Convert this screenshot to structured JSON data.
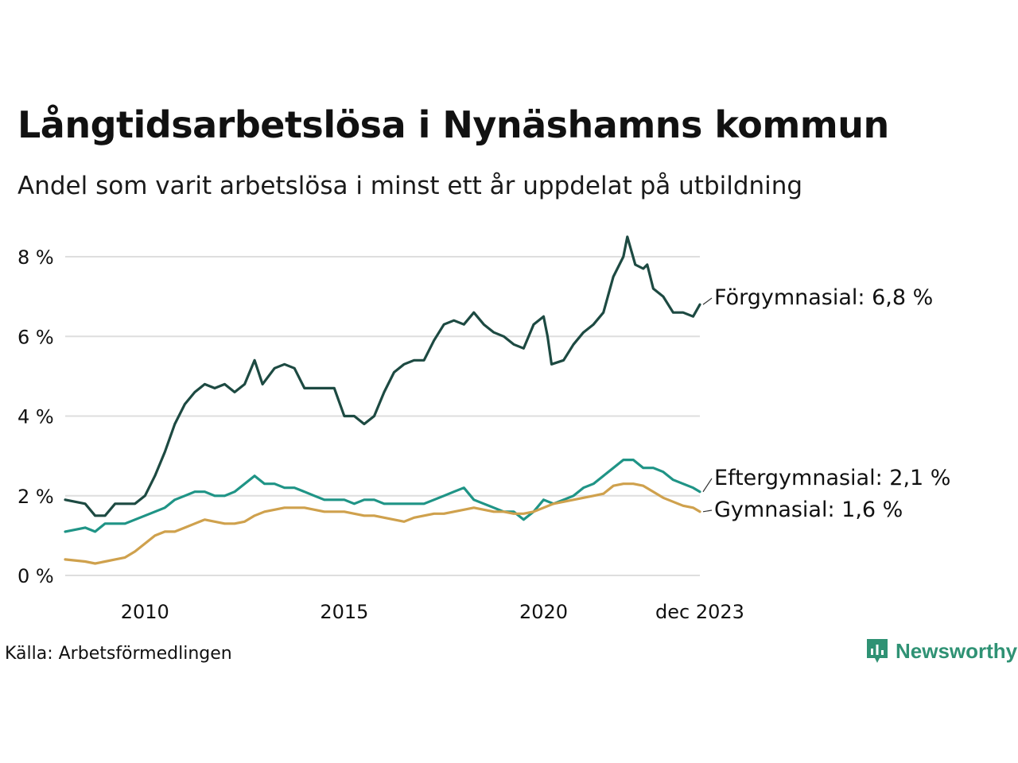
{
  "title": "Långtidsarbetslösa i Nynäshamns kommun",
  "subtitle": "Andel som varit arbetslösa i minst ett år uppdelat på utbildning",
  "source": "Källa: Arbetsförmedlingen",
  "brand": {
    "name": "Newsworthy",
    "icon": "newsworthy-logo-icon",
    "color": "#2f9274"
  },
  "chart_data": {
    "type": "line",
    "title": "Långtidsarbetslösa i Nynäshamns kommun",
    "xlabel": "",
    "ylabel": "",
    "xlim": [
      2008.0,
      2023.92
    ],
    "ylim": [
      0,
      8.5
    ],
    "y_ticks": [
      0,
      2,
      4,
      6,
      8
    ],
    "y_tick_labels": [
      "0 %",
      "2 %",
      "4 %",
      "6 %",
      "8 %"
    ],
    "x_ticks": [
      2010,
      2015,
      2020,
      2023.92
    ],
    "x_tick_labels": [
      "2010",
      "2015",
      "2020",
      "dec 2023"
    ],
    "grid": "horizontal",
    "series": [
      {
        "name": "Förgymnasial",
        "label": "Förgymnasial: 6,8 %",
        "color": "#1d4a42",
        "points": [
          [
            2008.0,
            1.9
          ],
          [
            2008.5,
            1.8
          ],
          [
            2008.75,
            1.5
          ],
          [
            2009.0,
            1.5
          ],
          [
            2009.25,
            1.8
          ],
          [
            2009.5,
            1.8
          ],
          [
            2009.75,
            1.8
          ],
          [
            2010.0,
            2.0
          ],
          [
            2010.25,
            2.5
          ],
          [
            2010.5,
            3.1
          ],
          [
            2010.75,
            3.8
          ],
          [
            2011.0,
            4.3
          ],
          [
            2011.25,
            4.6
          ],
          [
            2011.5,
            4.8
          ],
          [
            2011.75,
            4.7
          ],
          [
            2012.0,
            4.8
          ],
          [
            2012.25,
            4.6
          ],
          [
            2012.5,
            4.8
          ],
          [
            2012.75,
            5.4
          ],
          [
            2012.95,
            4.8
          ],
          [
            2013.25,
            5.2
          ],
          [
            2013.5,
            5.3
          ],
          [
            2013.75,
            5.2
          ],
          [
            2014.0,
            4.7
          ],
          [
            2014.25,
            4.7
          ],
          [
            2014.5,
            4.7
          ],
          [
            2014.75,
            4.7
          ],
          [
            2015.0,
            4.0
          ],
          [
            2015.25,
            4.0
          ],
          [
            2015.5,
            3.8
          ],
          [
            2015.75,
            4.0
          ],
          [
            2016.0,
            4.6
          ],
          [
            2016.25,
            5.1
          ],
          [
            2016.5,
            5.3
          ],
          [
            2016.75,
            5.4
          ],
          [
            2017.0,
            5.4
          ],
          [
            2017.25,
            5.9
          ],
          [
            2017.5,
            6.3
          ],
          [
            2017.75,
            6.4
          ],
          [
            2018.0,
            6.3
          ],
          [
            2018.25,
            6.6
          ],
          [
            2018.5,
            6.3
          ],
          [
            2018.75,
            6.1
          ],
          [
            2019.0,
            6.0
          ],
          [
            2019.25,
            5.8
          ],
          [
            2019.5,
            5.7
          ],
          [
            2019.75,
            6.3
          ],
          [
            2020.0,
            6.5
          ],
          [
            2020.1,
            6.0
          ],
          [
            2020.2,
            5.3
          ],
          [
            2020.5,
            5.4
          ],
          [
            2020.75,
            5.8
          ],
          [
            2021.0,
            6.1
          ],
          [
            2021.25,
            6.3
          ],
          [
            2021.5,
            6.6
          ],
          [
            2021.75,
            7.5
          ],
          [
            2022.0,
            8.0
          ],
          [
            2022.1,
            8.5
          ],
          [
            2022.3,
            7.8
          ],
          [
            2022.5,
            7.7
          ],
          [
            2022.6,
            7.8
          ],
          [
            2022.75,
            7.2
          ],
          [
            2023.0,
            7.0
          ],
          [
            2023.25,
            6.6
          ],
          [
            2023.5,
            6.6
          ],
          [
            2023.75,
            6.5
          ],
          [
            2023.92,
            6.8
          ]
        ]
      },
      {
        "name": "Eftergymnasial",
        "label": "Eftergymnasial: 2,1 %",
        "color": "#1f9486",
        "points": [
          [
            2008.0,
            1.1
          ],
          [
            2008.5,
            1.2
          ],
          [
            2008.75,
            1.1
          ],
          [
            2009.0,
            1.3
          ],
          [
            2009.25,
            1.3
          ],
          [
            2009.5,
            1.3
          ],
          [
            2009.75,
            1.4
          ],
          [
            2010.0,
            1.5
          ],
          [
            2010.25,
            1.6
          ],
          [
            2010.5,
            1.7
          ],
          [
            2010.75,
            1.9
          ],
          [
            2011.0,
            2.0
          ],
          [
            2011.25,
            2.1
          ],
          [
            2011.5,
            2.1
          ],
          [
            2011.75,
            2.0
          ],
          [
            2012.0,
            2.0
          ],
          [
            2012.25,
            2.1
          ],
          [
            2012.5,
            2.3
          ],
          [
            2012.75,
            2.5
          ],
          [
            2013.0,
            2.3
          ],
          [
            2013.25,
            2.3
          ],
          [
            2013.5,
            2.2
          ],
          [
            2013.75,
            2.2
          ],
          [
            2014.0,
            2.1
          ],
          [
            2014.25,
            2.0
          ],
          [
            2014.5,
            1.9
          ],
          [
            2014.75,
            1.9
          ],
          [
            2015.0,
            1.9
          ],
          [
            2015.25,
            1.8
          ],
          [
            2015.5,
            1.9
          ],
          [
            2015.75,
            1.9
          ],
          [
            2016.0,
            1.8
          ],
          [
            2016.25,
            1.8
          ],
          [
            2016.5,
            1.8
          ],
          [
            2016.75,
            1.8
          ],
          [
            2017.0,
            1.8
          ],
          [
            2017.25,
            1.9
          ],
          [
            2017.5,
            2.0
          ],
          [
            2017.75,
            2.1
          ],
          [
            2018.0,
            2.2
          ],
          [
            2018.25,
            1.9
          ],
          [
            2018.5,
            1.8
          ],
          [
            2018.75,
            1.7
          ],
          [
            2019.0,
            1.6
          ],
          [
            2019.25,
            1.6
          ],
          [
            2019.5,
            1.4
          ],
          [
            2019.75,
            1.6
          ],
          [
            2020.0,
            1.9
          ],
          [
            2020.25,
            1.8
          ],
          [
            2020.5,
            1.9
          ],
          [
            2020.75,
            2.0
          ],
          [
            2021.0,
            2.2
          ],
          [
            2021.25,
            2.3
          ],
          [
            2021.5,
            2.5
          ],
          [
            2021.75,
            2.7
          ],
          [
            2022.0,
            2.9
          ],
          [
            2022.25,
            2.9
          ],
          [
            2022.5,
            2.7
          ],
          [
            2022.75,
            2.7
          ],
          [
            2023.0,
            2.6
          ],
          [
            2023.25,
            2.4
          ],
          [
            2023.5,
            2.3
          ],
          [
            2023.75,
            2.2
          ],
          [
            2023.92,
            2.1
          ]
        ]
      },
      {
        "name": "Gymnasial",
        "label": "Gymnasial: 1,6 %",
        "color": "#cfa14d",
        "points": [
          [
            2008.0,
            0.4
          ],
          [
            2008.5,
            0.35
          ],
          [
            2008.75,
            0.3
          ],
          [
            2009.0,
            0.35
          ],
          [
            2009.25,
            0.4
          ],
          [
            2009.5,
            0.45
          ],
          [
            2009.75,
            0.6
          ],
          [
            2010.0,
            0.8
          ],
          [
            2010.25,
            1.0
          ],
          [
            2010.5,
            1.1
          ],
          [
            2010.75,
            1.1
          ],
          [
            2011.0,
            1.2
          ],
          [
            2011.25,
            1.3
          ],
          [
            2011.5,
            1.4
          ],
          [
            2011.75,
            1.35
          ],
          [
            2012.0,
            1.3
          ],
          [
            2012.25,
            1.3
          ],
          [
            2012.5,
            1.35
          ],
          [
            2012.75,
            1.5
          ],
          [
            2013.0,
            1.6
          ],
          [
            2013.25,
            1.65
          ],
          [
            2013.5,
            1.7
          ],
          [
            2013.75,
            1.7
          ],
          [
            2014.0,
            1.7
          ],
          [
            2014.25,
            1.65
          ],
          [
            2014.5,
            1.6
          ],
          [
            2014.75,
            1.6
          ],
          [
            2015.0,
            1.6
          ],
          [
            2015.25,
            1.55
          ],
          [
            2015.5,
            1.5
          ],
          [
            2015.75,
            1.5
          ],
          [
            2016.0,
            1.45
          ],
          [
            2016.25,
            1.4
          ],
          [
            2016.5,
            1.35
          ],
          [
            2016.75,
            1.45
          ],
          [
            2017.0,
            1.5
          ],
          [
            2017.25,
            1.55
          ],
          [
            2017.5,
            1.55
          ],
          [
            2017.75,
            1.6
          ],
          [
            2018.0,
            1.65
          ],
          [
            2018.25,
            1.7
          ],
          [
            2018.5,
            1.65
          ],
          [
            2018.75,
            1.6
          ],
          [
            2019.0,
            1.6
          ],
          [
            2019.25,
            1.55
          ],
          [
            2019.5,
            1.55
          ],
          [
            2019.75,
            1.6
          ],
          [
            2020.0,
            1.7
          ],
          [
            2020.25,
            1.8
          ],
          [
            2020.5,
            1.85
          ],
          [
            2020.75,
            1.9
          ],
          [
            2021.0,
            1.95
          ],
          [
            2021.25,
            2.0
          ],
          [
            2021.5,
            2.05
          ],
          [
            2021.75,
            2.25
          ],
          [
            2022.0,
            2.3
          ],
          [
            2022.25,
            2.3
          ],
          [
            2022.5,
            2.25
          ],
          [
            2022.75,
            2.1
          ],
          [
            2023.0,
            1.95
          ],
          [
            2023.25,
            1.85
          ],
          [
            2023.5,
            1.75
          ],
          [
            2023.75,
            1.7
          ],
          [
            2023.92,
            1.6
          ]
        ]
      }
    ]
  }
}
